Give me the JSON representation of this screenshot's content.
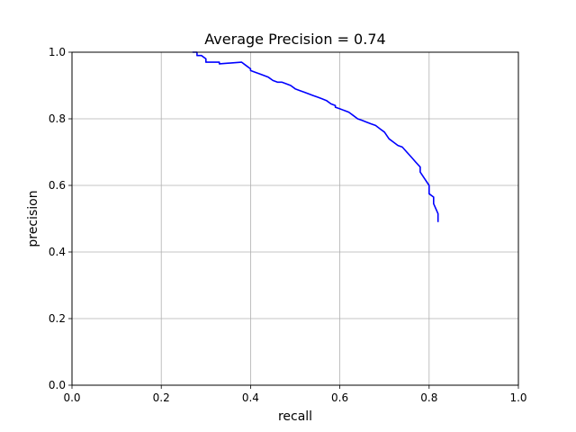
{
  "chart_data": {
    "type": "line",
    "title": "Average Precision = 0.74",
    "xlabel": "recall",
    "ylabel": "precision",
    "xlim": [
      0,
      1
    ],
    "ylim": [
      0,
      1
    ],
    "xticks": [
      "0.0",
      "0.2",
      "0.4",
      "0.6",
      "0.8",
      "1.0"
    ],
    "yticks": [
      "0.0",
      "0.2",
      "0.4",
      "0.6",
      "0.8",
      "1.0"
    ],
    "grid": true,
    "line_color": "#0000ff",
    "series": [
      {
        "x": [
          0.27,
          0.28,
          0.28,
          0.29,
          0.3,
          0.3,
          0.32,
          0.33,
          0.33,
          0.38,
          0.39,
          0.4,
          0.4,
          0.41,
          0.42,
          0.43,
          0.44,
          0.45,
          0.46,
          0.47,
          0.48,
          0.49,
          0.5,
          0.51,
          0.52,
          0.53,
          0.54,
          0.55,
          0.56,
          0.57,
          0.58,
          0.59,
          0.59,
          0.6,
          0.61,
          0.62,
          0.63,
          0.64,
          0.65,
          0.66,
          0.67,
          0.68,
          0.69,
          0.7,
          0.71,
          0.72,
          0.73,
          0.74,
          0.75,
          0.76,
          0.77,
          0.78,
          0.78,
          0.79,
          0.8,
          0.8,
          0.81,
          0.81,
          0.82,
          0.82
        ],
        "y": [
          1.0,
          1.0,
          0.99,
          0.99,
          0.98,
          0.97,
          0.97,
          0.97,
          0.965,
          0.97,
          0.96,
          0.95,
          0.945,
          0.94,
          0.935,
          0.93,
          0.925,
          0.915,
          0.91,
          0.91,
          0.905,
          0.9,
          0.89,
          0.885,
          0.88,
          0.875,
          0.87,
          0.865,
          0.86,
          0.855,
          0.845,
          0.84,
          0.835,
          0.83,
          0.825,
          0.82,
          0.81,
          0.8,
          0.795,
          0.79,
          0.785,
          0.78,
          0.77,
          0.76,
          0.74,
          0.73,
          0.72,
          0.715,
          0.7,
          0.685,
          0.67,
          0.655,
          0.64,
          0.62,
          0.6,
          0.575,
          0.565,
          0.545,
          0.515,
          0.49
        ]
      }
    ]
  }
}
